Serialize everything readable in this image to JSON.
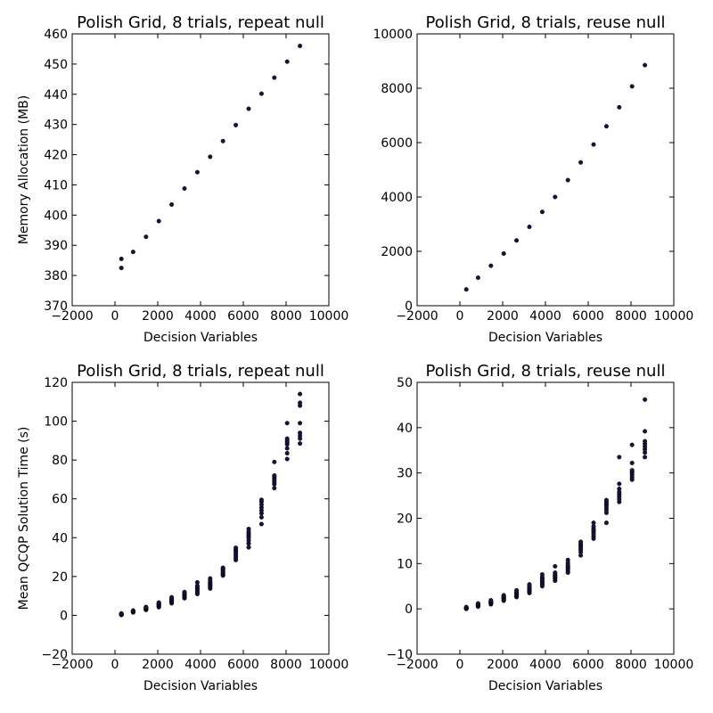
{
  "colors": {
    "marker": "#14143c",
    "axes": "#000000",
    "background": "#ffffff"
  },
  "chart_data": [
    {
      "type": "scatter",
      "title": "Polish Grid, 8 trials, repeat null",
      "xlabel": "Decision Variables",
      "ylabel": "Memory Allocation (MB)",
      "xlim": [
        -2000,
        10000
      ],
      "ylim": [
        370,
        460
      ],
      "xticks": [
        "−2000",
        "0",
        "2000",
        "4000",
        "6000",
        "8000",
        "10000"
      ],
      "yticks": [
        "370",
        "380",
        "390",
        "400",
        "410",
        "420",
        "430",
        "440",
        "450",
        "460"
      ],
      "grid": false,
      "series": [
        {
          "x": [
            300,
            300,
            850,
            1450,
            2050,
            2650,
            3250,
            3850,
            4450,
            5050,
            5650,
            6250,
            6850,
            7450,
            8050,
            8650
          ],
          "y": [
            382.5,
            385.5,
            387.8,
            392.8,
            398,
            403.5,
            408.8,
            414.2,
            419.3,
            424.5,
            429.8,
            435.2,
            440.2,
            445.5,
            450.8,
            456
          ]
        }
      ]
    },
    {
      "type": "scatter",
      "title": "Polish Grid, 8 trials, reuse null",
      "xlabel": "Decision Variables",
      "ylabel": "",
      "xlim": [
        -2000,
        10000
      ],
      "ylim": [
        0,
        10000
      ],
      "xticks": [
        "−2000",
        "0",
        "2000",
        "4000",
        "6000",
        "8000",
        "10000"
      ],
      "yticks": [
        "0",
        "2000",
        "4000",
        "6000",
        "8000",
        "10000"
      ],
      "grid": false,
      "series": [
        {
          "x": [
            300,
            850,
            1450,
            2050,
            2650,
            3250,
            3850,
            4450,
            5050,
            5650,
            6250,
            6850,
            7450,
            8050,
            8650
          ],
          "y": [
            600,
            1030,
            1470,
            1920,
            2400,
            2900,
            3450,
            4000,
            4620,
            5270,
            5930,
            6600,
            7300,
            8070,
            8850
          ]
        }
      ]
    },
    {
      "type": "scatter",
      "title": "Polish Grid, 8 trials, repeat null",
      "xlabel": "Decision Variables",
      "ylabel": "Mean QCQP Solution Time (s)",
      "xlim": [
        -2000,
        10000
      ],
      "ylim": [
        -20,
        120
      ],
      "xticks": [
        "−2000",
        "0",
        "2000",
        "4000",
        "6000",
        "8000",
        "10000"
      ],
      "yticks": [
        "−20",
        "0",
        "20",
        "40",
        "60",
        "80",
        "100",
        "120"
      ],
      "grid": false,
      "series": [
        {
          "x": [
            300,
            300,
            300,
            300,
            300,
            300,
            300,
            300,
            850,
            850,
            850,
            850,
            850,
            850,
            850,
            850,
            1450,
            1450,
            1450,
            1450,
            1450,
            1450,
            1450,
            1450,
            2050,
            2050,
            2050,
            2050,
            2050,
            2050,
            2050,
            2050,
            2650,
            2650,
            2650,
            2650,
            2650,
            2650,
            2650,
            2650,
            3250,
            3250,
            3250,
            3250,
            3250,
            3250,
            3250,
            3250,
            3850,
            3850,
            3850,
            3850,
            3850,
            3850,
            3850,
            3850,
            4450,
            4450,
            4450,
            4450,
            4450,
            4450,
            4450,
            4450,
            5050,
            5050,
            5050,
            5050,
            5050,
            5050,
            5050,
            5050,
            5650,
            5650,
            5650,
            5650,
            5650,
            5650,
            5650,
            5650,
            6250,
            6250,
            6250,
            6250,
            6250,
            6250,
            6250,
            6250,
            6850,
            6850,
            6850,
            6850,
            6850,
            6850,
            6850,
            6850,
            7450,
            7450,
            7450,
            7450,
            7450,
            7450,
            7450,
            7450,
            8050,
            8050,
            8050,
            8050,
            8050,
            8050,
            8050,
            8050,
            8650,
            8650,
            8650,
            8650,
            8650,
            8650,
            8650,
            8650
          ],
          "y": [
            0.2,
            0.3,
            0.4,
            0.5,
            0.6,
            0.7,
            0.8,
            1.0,
            1.5,
            1.7,
            1.9,
            2.0,
            2.1,
            2.2,
            2.3,
            2.5,
            2.8,
            3.0,
            3.2,
            3.4,
            3.6,
            3.8,
            4.0,
            4.3,
            4.2,
            4.6,
            5.0,
            5.3,
            5.6,
            5.9,
            6.2,
            6.6,
            6.2,
            6.7,
            7.2,
            7.6,
            8.0,
            8.4,
            8.8,
            9.3,
            8.8,
            9.3,
            9.8,
            10.2,
            10.6,
            11.0,
            11.5,
            12.0,
            11.0,
            11.8,
            12.6,
            13.3,
            14.0,
            14.5,
            15.3,
            17.0,
            13.8,
            14.5,
            15.2,
            15.8,
            16.4,
            17.0,
            17.8,
            19.0,
            20.5,
            21.0,
            21.6,
            22.2,
            22.8,
            23.5,
            24.0,
            24.5,
            28.5,
            29.5,
            30.5,
            31.5,
            32.5,
            33.5,
            34.0,
            34.8,
            35.0,
            37.0,
            38.5,
            40.0,
            41.0,
            42.0,
            43.0,
            44.5,
            47.0,
            50.5,
            52.5,
            54.0,
            55.5,
            57.0,
            58.5,
            59.5,
            65.5,
            67.5,
            68.5,
            69.5,
            70.5,
            71.5,
            72.0,
            79.0,
            80.5,
            83.5,
            86.0,
            88.0,
            89.0,
            90.0,
            91.0,
            99.0,
            88.5,
            91.0,
            92.5,
            94.0,
            99.0,
            108.0,
            109.5,
            114.0
          ]
        }
      ]
    },
    {
      "type": "scatter",
      "title": "Polish Grid, 8 trials, reuse null",
      "xlabel": "Decision Variables",
      "ylabel": "",
      "xlim": [
        -2000,
        10000
      ],
      "ylim": [
        -10,
        50
      ],
      "xticks": [
        "−2000",
        "0",
        "2000",
        "4000",
        "6000",
        "8000",
        "10000"
      ],
      "yticks": [
        "−10",
        "0",
        "10",
        "20",
        "30",
        "40",
        "50"
      ],
      "grid": false,
      "series": [
        {
          "x": [
            300,
            300,
            300,
            300,
            300,
            300,
            300,
            300,
            850,
            850,
            850,
            850,
            850,
            850,
            850,
            850,
            1450,
            1450,
            1450,
            1450,
            1450,
            1450,
            1450,
            1450,
            2050,
            2050,
            2050,
            2050,
            2050,
            2050,
            2050,
            2050,
            2650,
            2650,
            2650,
            2650,
            2650,
            2650,
            2650,
            2650,
            3250,
            3250,
            3250,
            3250,
            3250,
            3250,
            3250,
            3250,
            3850,
            3850,
            3850,
            3850,
            3850,
            3850,
            3850,
            3850,
            4450,
            4450,
            4450,
            4450,
            4450,
            4450,
            4450,
            4450,
            5050,
            5050,
            5050,
            5050,
            5050,
            5050,
            5050,
            5050,
            5650,
            5650,
            5650,
            5650,
            5650,
            5650,
            5650,
            5650,
            6250,
            6250,
            6250,
            6250,
            6250,
            6250,
            6250,
            6250,
            6850,
            6850,
            6850,
            6850,
            6850,
            6850,
            6850,
            6850,
            7450,
            7450,
            7450,
            7450,
            7450,
            7450,
            7450,
            7450,
            8050,
            8050,
            8050,
            8050,
            8050,
            8050,
            8050,
            8050,
            8650,
            8650,
            8650,
            8650,
            8650,
            8650,
            8650,
            8650
          ],
          "y": [
            0.0,
            0.05,
            0.1,
            0.15,
            0.2,
            0.25,
            0.3,
            0.4,
            0.5,
            0.6,
            0.7,
            0.8,
            0.9,
            1.0,
            1.1,
            1.2,
            1.0,
            1.2,
            1.3,
            1.4,
            1.5,
            1.6,
            1.7,
            1.9,
            1.8,
            2.0,
            2.2,
            2.3,
            2.5,
            2.6,
            2.8,
            3.0,
            2.6,
            2.8,
            3.0,
            3.2,
            3.4,
            3.6,
            3.8,
            4.1,
            3.5,
            3.8,
            4.0,
            4.2,
            4.5,
            4.7,
            5.0,
            5.4,
            5.0,
            5.4,
            5.8,
            6.1,
            6.4,
            6.7,
            7.0,
            7.6,
            6.2,
            6.6,
            6.9,
            7.1,
            7.3,
            7.6,
            8.0,
            9.4,
            8.0,
            8.4,
            8.8,
            9.1,
            9.4,
            9.7,
            10.2,
            10.8,
            11.8,
            12.5,
            13.0,
            13.4,
            13.8,
            14.1,
            14.4,
            14.8,
            15.5,
            16.0,
            16.5,
            17.0,
            17.3,
            17.7,
            18.2,
            19.0,
            19.0,
            21.2,
            21.8,
            22.3,
            22.8,
            23.2,
            23.6,
            24.0,
            23.6,
            24.2,
            24.8,
            25.3,
            25.8,
            26.5,
            27.6,
            33.5,
            28.5,
            29.0,
            29.5,
            30.0,
            30.3,
            30.6,
            32.2,
            36.2,
            33.5,
            34.5,
            35.2,
            35.8,
            36.4,
            37.0,
            39.2,
            46.2
          ]
        }
      ]
    }
  ]
}
